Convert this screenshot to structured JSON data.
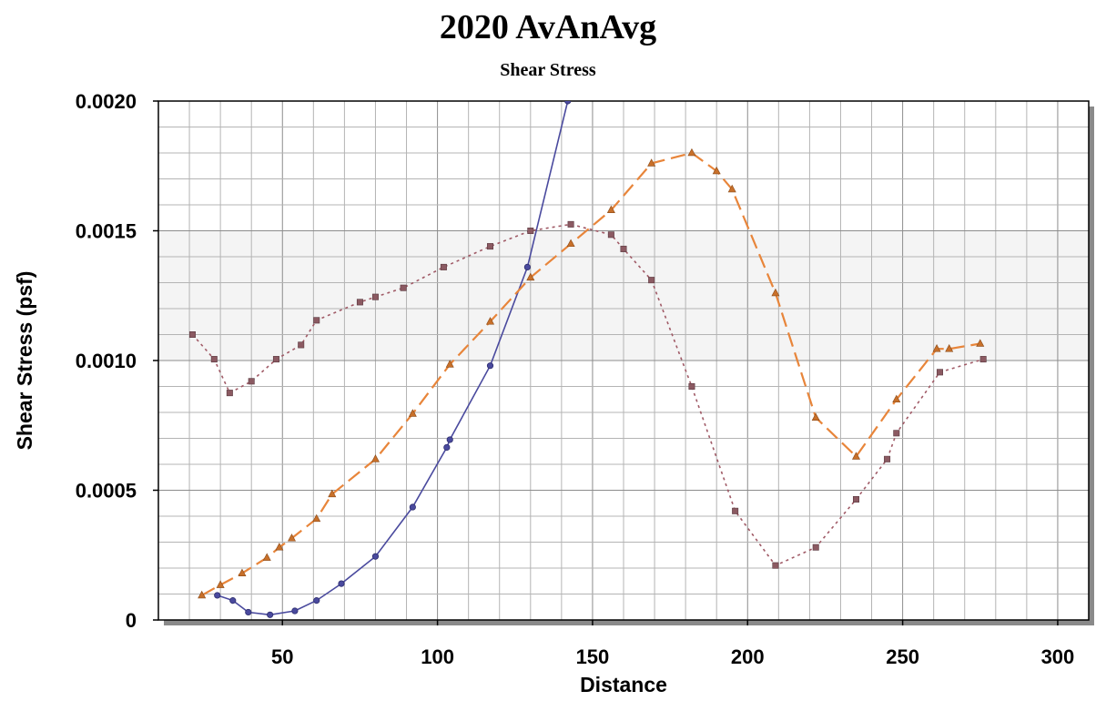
{
  "chart_data": {
    "type": "line",
    "title": "2020 AvAnAvg",
    "subtitle": "Shear Stress",
    "xlabel": "Distance",
    "ylabel": "Shear Stress (psf)",
    "xlim": [
      10,
      310
    ],
    "ylim": [
      0,
      0.002
    ],
    "x_ticks": [
      50,
      100,
      150,
      200,
      250,
      300
    ],
    "x_tick_labels": [
      "50",
      "100",
      "150",
      "200",
      "250",
      "300"
    ],
    "y_ticks": [
      0,
      0.0005,
      0.001,
      0.0015,
      0.002
    ],
    "y_tick_labels": [
      "0",
      "0.0005",
      "0.0010",
      "0.0015",
      "0.0020"
    ],
    "grid": true,
    "legend": "none",
    "series": [
      {
        "style": "solid",
        "marker": "circle",
        "color": "#4a4a9e",
        "x": [
          29,
          34,
          39,
          46,
          54,
          61,
          69,
          80,
          92,
          103,
          104,
          117,
          129,
          142
        ],
        "y": [
          9.5e-05,
          7.5e-05,
          3e-05,
          2e-05,
          3.5e-05,
          7.5e-05,
          0.00014,
          0.000245,
          0.000435,
          0.000665,
          0.000695,
          0.00098,
          0.00136,
          0.002
        ]
      },
      {
        "style": "dashed",
        "marker": "triangle",
        "color": "#e8853a",
        "x": [
          24,
          30,
          37,
          45,
          49,
          53,
          61,
          66,
          80,
          92,
          104,
          117,
          130,
          143,
          156,
          169,
          182,
          190,
          195,
          209,
          222,
          235,
          248,
          261,
          265,
          275
        ],
        "y": [
          9.5e-05,
          0.000135,
          0.00018,
          0.00024,
          0.00028,
          0.000315,
          0.00039,
          0.000485,
          0.00062,
          0.000795,
          0.000985,
          0.00115,
          0.00132,
          0.00145,
          0.00158,
          0.00176,
          0.0018,
          0.00173,
          0.00166,
          0.00126,
          0.00078,
          0.00063,
          0.00085,
          0.001045,
          0.001045,
          0.001065
        ]
      },
      {
        "style": "dotted",
        "marker": "square",
        "color": "#a05a66",
        "x": [
          21,
          28,
          33,
          40,
          48,
          56,
          61,
          75,
          80,
          89,
          102,
          117,
          130,
          143,
          156,
          160,
          169,
          182,
          196,
          209,
          222,
          235,
          245,
          248,
          262,
          276
        ],
        "y": [
          0.0011,
          0.001005,
          0.000875,
          0.00092,
          0.001005,
          0.00106,
          0.001155,
          0.001225,
          0.001245,
          0.00128,
          0.00136,
          0.00144,
          0.0015,
          0.001525,
          0.001485,
          0.00143,
          0.00131,
          0.0009,
          0.00042,
          0.00021,
          0.00028,
          0.000465,
          0.00062,
          0.00072,
          0.000955,
          0.001005
        ]
      }
    ]
  }
}
